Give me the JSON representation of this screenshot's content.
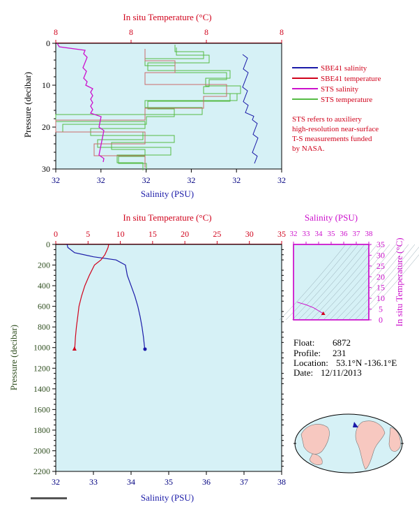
{
  "colors": {
    "plot_bg": "#d6f1f6",
    "salinity": "#1a1aa8",
    "temperature": "#d0021b",
    "sts_salinity": "#cc11cc",
    "sts_temperature": "#55bb44",
    "pressure_axis": "#2e4d1e"
  },
  "top_panel": {
    "top_axis_label": "In situ Temperature (°C)",
    "bottom_axis_label": "Salinity (PSU)",
    "left_axis_label": "Pressure (decibar)",
    "top_ticks": [
      "8",
      "8",
      "8",
      "8"
    ],
    "bottom_ticks": [
      "32",
      "32",
      "32",
      "32",
      "32",
      "32"
    ],
    "left_ticks": [
      "0",
      "10",
      "20",
      "30"
    ]
  },
  "legend": {
    "items": [
      {
        "label": "SBE41 salinity",
        "color": "#1a1aa8"
      },
      {
        "label": "SBE41 temperature",
        "color": "#d0021b"
      },
      {
        "label": "STS salinity",
        "color": "#cc11cc"
      },
      {
        "label": "STS temperature",
        "color": "#55bb44"
      }
    ],
    "note": [
      "STS refers to auxiliery",
      "high-resolution near-surface",
      "T-S measurements funded",
      "by NASA."
    ]
  },
  "main_panel": {
    "top_axis_label": "In situ Temperature (°C)",
    "bottom_axis_label": "Salinity (PSU)",
    "left_axis_label": "Pressure (decibar)",
    "top_ticks": [
      "0",
      "5",
      "10",
      "15",
      "20",
      "25",
      "30",
      "35"
    ],
    "bottom_ticks": [
      "32",
      "33",
      "34",
      "35",
      "36",
      "37",
      "38"
    ],
    "left_ticks": [
      "0",
      "200",
      "400",
      "600",
      "800",
      "1000",
      "1200",
      "1400",
      "1600",
      "1800",
      "2000",
      "2200"
    ]
  },
  "ts_panel": {
    "top_axis_label": "Salinity (PSU)",
    "right_axis_label": "In situ Temperature (°C)",
    "top_ticks": [
      "32",
      "33",
      "34",
      "35",
      "36",
      "37",
      "38"
    ],
    "right_ticks": [
      "0",
      "5",
      "10",
      "15",
      "20",
      "25",
      "30",
      "35"
    ]
  },
  "info": {
    "float_label": "Float:",
    "float_value": "6872",
    "profile_label": "Profile:",
    "profile_value": "231",
    "location_label": "Location:",
    "location_value": "53.1°N  -136.1°E",
    "date_label": "Date:",
    "date_value": "12/11/2013"
  },
  "chart_data": [
    {
      "type": "line",
      "panel": "main",
      "ylabel": "Pressure (decibar)",
      "ylim": [
        2200,
        0
      ],
      "series": [
        {
          "name": "salinity",
          "x_axis": "Salinity (PSU)",
          "xlim": [
            32,
            38
          ],
          "points": [
            [
              32.3,
              0
            ],
            [
              32.32,
              30
            ],
            [
              32.5,
              80
            ],
            [
              33.0,
              120
            ],
            [
              33.6,
              150
            ],
            [
              33.85,
              200
            ],
            [
              33.9,
              300
            ],
            [
              34.0,
              400
            ],
            [
              34.1,
              500
            ],
            [
              34.18,
              600
            ],
            [
              34.24,
              700
            ],
            [
              34.29,
              800
            ],
            [
              34.33,
              900
            ],
            [
              34.36,
              1000
            ],
            [
              34.37,
              1015
            ]
          ]
        },
        {
          "name": "temperature",
          "x_axis": "In situ Temperature (°C)",
          "xlim": [
            0,
            35
          ],
          "points": [
            [
              8.2,
              0
            ],
            [
              8.1,
              30
            ],
            [
              7.9,
              60
            ],
            [
              7.6,
              100
            ],
            [
              7.0,
              150
            ],
            [
              6.0,
              200
            ],
            [
              5.2,
              300
            ],
            [
              4.5,
              400
            ],
            [
              4.0,
              500
            ],
            [
              3.6,
              600
            ],
            [
              3.4,
              700
            ],
            [
              3.2,
              800
            ],
            [
              3.05,
              900
            ],
            [
              2.95,
              1000
            ],
            [
              2.9,
              1015
            ]
          ]
        }
      ]
    },
    {
      "type": "line",
      "panel": "top",
      "ylabel": "Pressure (decibar)",
      "ylim": [
        30,
        0
      ],
      "series": [
        {
          "name": "SBE41 salinity",
          "points_pressure": [
            0,
            2,
            4,
            6,
            8,
            10,
            12,
            14,
            16,
            18,
            20,
            22,
            24,
            26,
            28
          ]
        },
        {
          "name": "STS salinity",
          "points_pressure": [
            0,
            2,
            4,
            6,
            8,
            10,
            12,
            14,
            16,
            18,
            20,
            22,
            24,
            26,
            28
          ]
        }
      ]
    },
    {
      "type": "line",
      "panel": "ts",
      "xlabel": "Salinity (PSU)",
      "ylabel": "In situ Temperature (°C)",
      "xlim": [
        32,
        38
      ],
      "ylim": [
        0,
        35
      ],
      "series": [
        {
          "name": "T-S",
          "points": [
            [
              32.3,
              8.2
            ],
            [
              33.0,
              7.0
            ],
            [
              33.6,
              5.6
            ],
            [
              34.0,
              4.2
            ],
            [
              34.2,
              3.5
            ],
            [
              34.37,
              2.9
            ]
          ]
        }
      ]
    }
  ]
}
